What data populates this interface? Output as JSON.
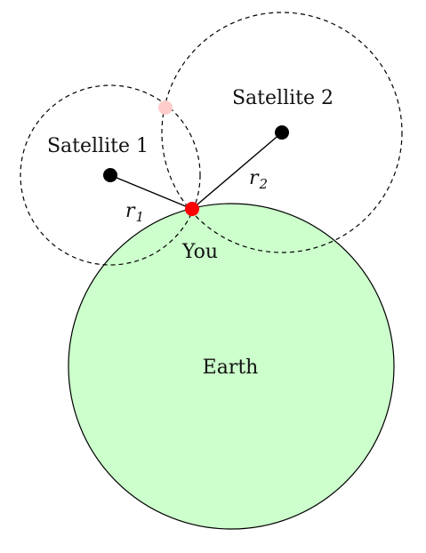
{
  "diagram": {
    "earth_label": "Earth",
    "you_label": "You",
    "satellite1_label": "Satellite 1",
    "satellite2_label": "Satellite 2",
    "r1_base": "r",
    "r1_sub": "1",
    "r2_base": "r",
    "r2_sub": "2"
  },
  "colors": {
    "earth_fill": "#ccffcc",
    "you_dot": "#ff0000",
    "ambiguous_point": "#ffcccc",
    "satellite": "#000000",
    "stroke": "#000000"
  }
}
